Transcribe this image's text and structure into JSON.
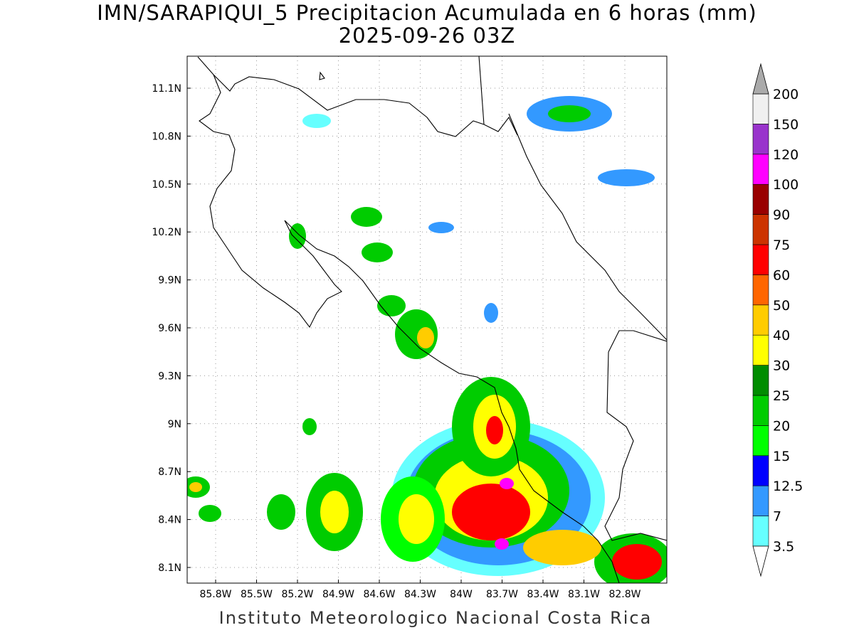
{
  "title": "IMN/SARAPIQUI_5 Precipitacion Acumulada en 6 horas (mm)",
  "subtitle": "2025-09-26 03Z",
  "footer": "Instituto Meteorologico Nacional Costa Rica",
  "map": {
    "lat_ticks": [
      "11.1N",
      "10.8N",
      "10.5N",
      "10.2N",
      "9.9N",
      "9.6N",
      "9.3N",
      "9N",
      "8.7N",
      "8.4N",
      "8.1N"
    ],
    "lon_ticks": [
      "85.8W",
      "85.5W",
      "85.2W",
      "84.9W",
      "84.6W",
      "84.3W",
      "84W",
      "83.7W",
      "83.4W",
      "83.1W",
      "82.8W"
    ]
  },
  "colorbar": {
    "levels": [
      3.5,
      7,
      12.5,
      15,
      20,
      25,
      30,
      40,
      50,
      60,
      75,
      90,
      100,
      120,
      150,
      200
    ],
    "colors": [
      "#66ffff",
      "#3399ff",
      "#0000ff",
      "#00ff00",
      "#00cc00",
      "#008c00",
      "#ffff00",
      "#ffcc00",
      "#ff6600",
      "#ff0000",
      "#cc3300",
      "#990000",
      "#ff00ff",
      "#9933cc",
      "#f0f0f0"
    ],
    "under_color": "#ffffff",
    "over_color": "#aaaaaa"
  }
}
